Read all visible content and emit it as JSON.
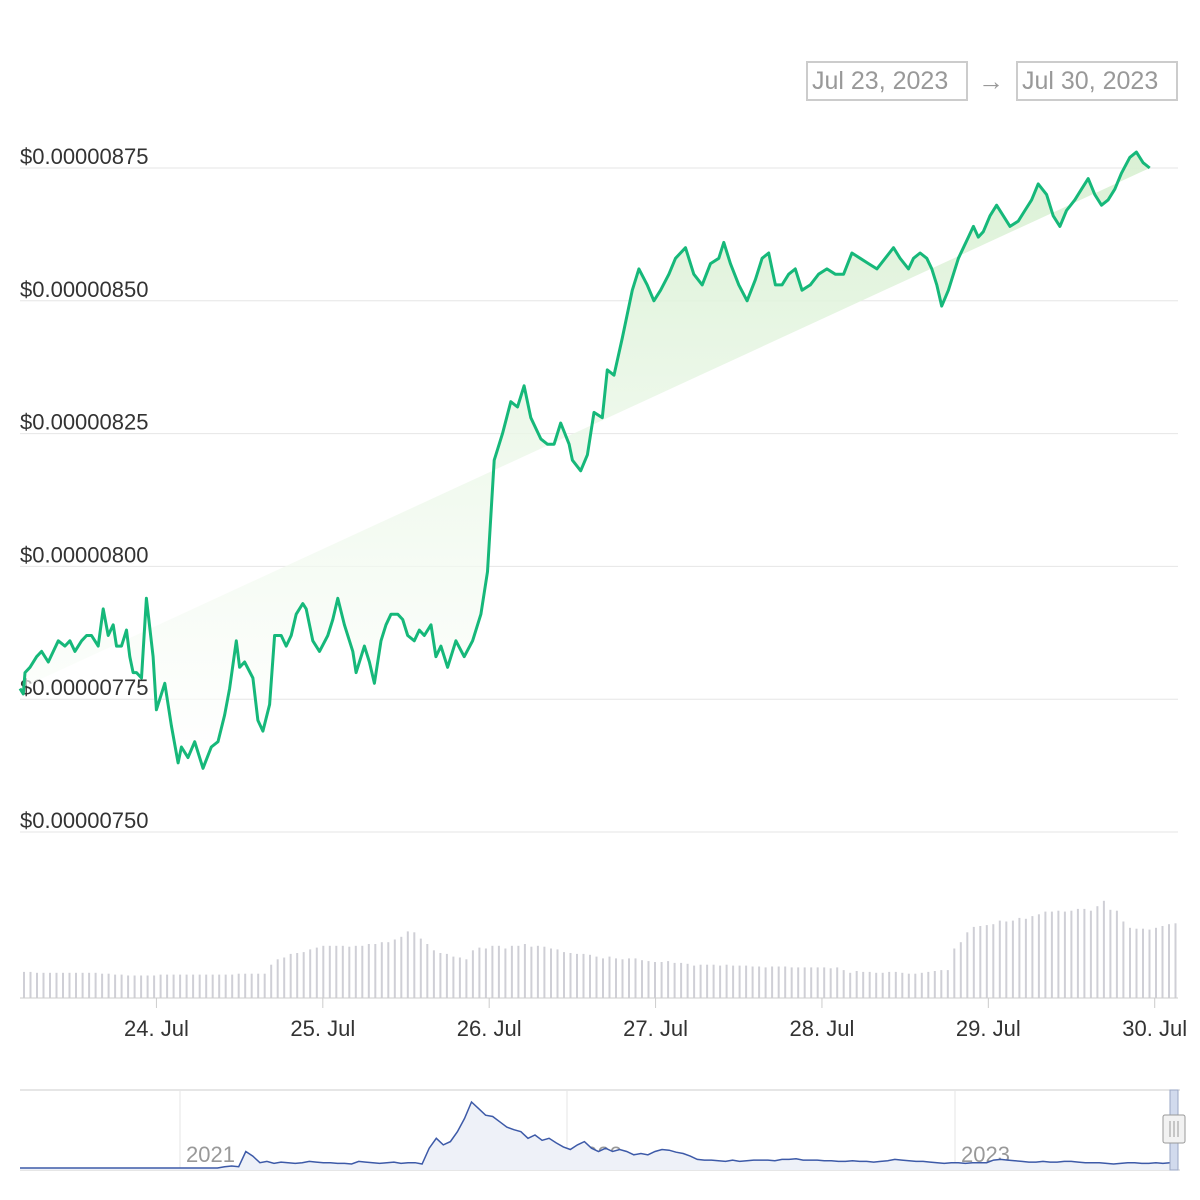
{
  "range_selector": {
    "from": "Jul 23, 2023",
    "arrow": "→",
    "to": "Jul 30, 2023"
  },
  "colors": {
    "line": "#16b87a",
    "fill_top": "#d8f0d2",
    "volume": "#cfcfd6",
    "navigator_line": "#3d5aa8",
    "navigator_fill": "#eef1f8"
  },
  "chart_data": {
    "type": "line",
    "title": "",
    "xlabel": "",
    "ylabel": "",
    "y_ticks": [
      "$0.00000875",
      "$0.00000850",
      "$0.00000825",
      "$0.00000800",
      "$0.00000775",
      "$0.00000750"
    ],
    "ylim": [
      7.5e-06,
      8.75e-06
    ],
    "x_ticks": [
      "24. Jul",
      "25. Jul",
      "26. Jul",
      "27. Jul",
      "28. Jul",
      "29. Jul",
      "30. Jul"
    ],
    "x_range_days": [
      23.18,
      30.14
    ],
    "grid": true,
    "series": [
      {
        "values_x_days": [
          23.18,
          23.2,
          23.21,
          23.24,
          23.28,
          23.31,
          23.35,
          23.38,
          23.41,
          23.45,
          23.48,
          23.51,
          23.55,
          23.58,
          23.61,
          23.65,
          23.68,
          23.71,
          23.74,
          23.76,
          23.79,
          23.82,
          23.84,
          23.86,
          23.88,
          23.91,
          23.94,
          23.98,
          24.0,
          24.05,
          24.09,
          24.13,
          24.15,
          24.19,
          24.23,
          24.28,
          24.33,
          24.37,
          24.41,
          24.44,
          24.48,
          24.5,
          24.53,
          24.58,
          24.61,
          24.64,
          24.68,
          24.71,
          24.75,
          24.78,
          24.81,
          24.84,
          24.88,
          24.9,
          24.94,
          24.98,
          25.03,
          25.06,
          25.09,
          25.13,
          25.18,
          25.2,
          25.25,
          25.28,
          25.31,
          25.35,
          25.38,
          25.41,
          25.45,
          25.48,
          25.51,
          25.55,
          25.58,
          25.61,
          25.65,
          25.68,
          25.71,
          25.75,
          25.8,
          25.85,
          25.9,
          25.95,
          25.99,
          26.03,
          26.08,
          26.13,
          26.17,
          26.21,
          26.25,
          26.31,
          26.35,
          26.39,
          26.43,
          26.48,
          26.5,
          26.55,
          26.59,
          26.63,
          26.68,
          26.71,
          26.75,
          26.8,
          26.86,
          26.9,
          26.95,
          26.99,
          27.03,
          27.08,
          27.12,
          27.18,
          27.23,
          27.28,
          27.33,
          27.38,
          27.41,
          27.45,
          27.5,
          27.55,
          27.6,
          27.64,
          27.68,
          27.72,
          27.76,
          27.8,
          27.84,
          27.88,
          27.93,
          27.98,
          28.03,
          28.08,
          28.13,
          28.18,
          28.23,
          28.28,
          28.33,
          28.38,
          28.43,
          28.47,
          28.52,
          28.55,
          28.59,
          28.63,
          28.66,
          28.69,
          28.72,
          28.76,
          28.79,
          28.82,
          28.85,
          28.88,
          28.91,
          28.94,
          28.97,
          29.01,
          29.05,
          29.09,
          29.13,
          29.18,
          29.22,
          29.26,
          29.3,
          29.35,
          29.39,
          29.43,
          29.47,
          29.52,
          29.56,
          29.6,
          29.64,
          29.68,
          29.72,
          29.76,
          29.8,
          29.85,
          29.89,
          29.93,
          29.97,
          30.01,
          30.06,
          30.1,
          30.14
        ],
        "values": [
          7.77e-06,
          7.76e-06,
          7.8e-06,
          7.81e-06,
          7.83e-06,
          7.84e-06,
          7.82e-06,
          7.84e-06,
          7.86e-06,
          7.85e-06,
          7.86e-06,
          7.84e-06,
          7.86e-06,
          7.87e-06,
          7.87e-06,
          7.85e-06,
          7.92e-06,
          7.87e-06,
          7.89e-06,
          7.85e-06,
          7.85e-06,
          7.88e-06,
          7.83e-06,
          7.8e-06,
          7.8e-06,
          7.79e-06,
          7.94e-06,
          7.83e-06,
          7.73e-06,
          7.78e-06,
          7.7e-06,
          7.63e-06,
          7.66e-06,
          7.64e-06,
          7.67e-06,
          7.62e-06,
          7.66e-06,
          7.67e-06,
          7.72e-06,
          7.77e-06,
          7.86e-06,
          7.81e-06,
          7.82e-06,
          7.79e-06,
          7.71e-06,
          7.69e-06,
          7.74e-06,
          7.87e-06,
          7.87e-06,
          7.85e-06,
          7.87e-06,
          7.91e-06,
          7.93e-06,
          7.92e-06,
          7.86e-06,
          7.84e-06,
          7.87e-06,
          7.9e-06,
          7.94e-06,
          7.89e-06,
          7.84e-06,
          7.8e-06,
          7.85e-06,
          7.82e-06,
          7.78e-06,
          7.86e-06,
          7.89e-06,
          7.91e-06,
          7.91e-06,
          7.9e-06,
          7.87e-06,
          7.86e-06,
          7.88e-06,
          7.87e-06,
          7.89e-06,
          7.83e-06,
          7.85e-06,
          7.81e-06,
          7.86e-06,
          7.83e-06,
          7.86e-06,
          7.91e-06,
          7.99e-06,
          8.2e-06,
          8.25e-06,
          8.31e-06,
          8.3e-06,
          8.34e-06,
          8.28e-06,
          8.24e-06,
          8.23e-06,
          8.23e-06,
          8.27e-06,
          8.23e-06,
          8.2e-06,
          8.18e-06,
          8.21e-06,
          8.29e-06,
          8.28e-06,
          8.37e-06,
          8.36e-06,
          8.43e-06,
          8.52e-06,
          8.56e-06,
          8.53e-06,
          8.5e-06,
          8.52e-06,
          8.55e-06,
          8.58e-06,
          8.6e-06,
          8.55e-06,
          8.53e-06,
          8.57e-06,
          8.58e-06,
          8.61e-06,
          8.57e-06,
          8.53e-06,
          8.5e-06,
          8.54e-06,
          8.58e-06,
          8.59e-06,
          8.53e-06,
          8.53e-06,
          8.55e-06,
          8.56e-06,
          8.52e-06,
          8.53e-06,
          8.55e-06,
          8.56e-06,
          8.55e-06,
          8.55e-06,
          8.59e-06,
          8.58e-06,
          8.57e-06,
          8.56e-06,
          8.58e-06,
          8.6e-06,
          8.58e-06,
          8.56e-06,
          8.58e-06,
          8.59e-06,
          8.58e-06,
          8.56e-06,
          8.53e-06,
          8.49e-06,
          8.52e-06,
          8.55e-06,
          8.58e-06,
          8.6e-06,
          8.62e-06,
          8.64e-06,
          8.62e-06,
          8.63e-06,
          8.66e-06,
          8.68e-06,
          8.66e-06,
          8.64e-06,
          8.65e-06,
          8.67e-06,
          8.69e-06,
          8.72e-06,
          8.7e-06,
          8.66e-06,
          8.64e-06,
          8.67e-06,
          8.69e-06,
          8.71e-06,
          8.73e-06,
          8.7e-06,
          8.68e-06,
          8.69e-06,
          8.71e-06,
          8.74e-06,
          8.77e-06,
          8.78e-06,
          8.76e-06,
          8.75e-06
        ]
      }
    ],
    "volume": [
      0.29,
      0.29,
      0.28,
      0.28,
      0.28,
      0.28,
      0.28,
      0.28,
      0.28,
      0.28,
      0.28,
      0.28,
      0.27,
      0.27,
      0.26,
      0.26,
      0.25,
      0.25,
      0.25,
      0.25,
      0.25,
      0.26,
      0.26,
      0.26,
      0.26,
      0.26,
      0.26,
      0.26,
      0.26,
      0.26,
      0.26,
      0.26,
      0.26,
      0.27,
      0.27,
      0.27,
      0.27,
      0.27,
      0.37,
      0.43,
      0.45,
      0.49,
      0.5,
      0.51,
      0.54,
      0.56,
      0.58,
      0.58,
      0.58,
      0.58,
      0.57,
      0.58,
      0.58,
      0.6,
      0.6,
      0.62,
      0.62,
      0.65,
      0.68,
      0.74,
      0.73,
      0.66,
      0.6,
      0.53,
      0.5,
      0.49,
      0.46,
      0.45,
      0.43,
      0.53,
      0.56,
      0.55,
      0.58,
      0.58,
      0.55,
      0.58,
      0.58,
      0.6,
      0.57,
      0.58,
      0.57,
      0.55,
      0.54,
      0.51,
      0.5,
      0.49,
      0.49,
      0.48,
      0.46,
      0.44,
      0.46,
      0.44,
      0.43,
      0.44,
      0.44,
      0.42,
      0.41,
      0.4,
      0.4,
      0.41,
      0.39,
      0.39,
      0.38,
      0.36,
      0.37,
      0.37,
      0.37,
      0.36,
      0.37,
      0.36,
      0.36,
      0.36,
      0.35,
      0.35,
      0.34,
      0.35,
      0.35,
      0.35,
      0.34,
      0.34,
      0.34,
      0.34,
      0.34,
      0.34,
      0.33,
      0.34,
      0.31,
      0.28,
      0.3,
      0.29,
      0.29,
      0.28,
      0.28,
      0.29,
      0.29,
      0.28,
      0.27,
      0.27,
      0.28,
      0.29,
      0.3,
      0.31,
      0.31,
      0.55,
      0.62,
      0.73,
      0.79,
      0.8,
      0.81,
      0.82,
      0.86,
      0.85,
      0.86,
      0.89,
      0.88,
      0.91,
      0.93,
      0.96,
      0.96,
      0.97,
      0.96,
      0.97,
      0.99,
      0.99,
      0.97,
      1.02,
      1.08,
      0.98,
      0.97,
      0.85,
      0.78,
      0.77,
      0.77,
      0.76,
      0.78,
      0.8,
      0.82,
      0.83
    ],
    "navigator": {
      "x_ticks": [
        "2021",
        "2022",
        "2023"
      ],
      "values": [
        0,
        0,
        0,
        0,
        0,
        0,
        0,
        0,
        0,
        0,
        0,
        0,
        0,
        0,
        0,
        0,
        0,
        0,
        0,
        0,
        0,
        0,
        0,
        0,
        0,
        0,
        0,
        0,
        0,
        0.02,
        0.03,
        0.02,
        0.25,
        0.18,
        0.08,
        0.1,
        0.07,
        0.09,
        0.08,
        0.07,
        0.08,
        0.1,
        0.09,
        0.08,
        0.08,
        0.07,
        0.07,
        0.06,
        0.1,
        0.09,
        0.08,
        0.07,
        0.08,
        0.09,
        0.07,
        0.08,
        0.08,
        0.06,
        0.3,
        0.45,
        0.35,
        0.4,
        0.55,
        0.75,
        1.0,
        0.9,
        0.8,
        0.78,
        0.7,
        0.62,
        0.58,
        0.55,
        0.45,
        0.5,
        0.42,
        0.45,
        0.38,
        0.32,
        0.28,
        0.35,
        0.4,
        0.3,
        0.25,
        0.3,
        0.25,
        0.28,
        0.25,
        0.2,
        0.22,
        0.2,
        0.25,
        0.28,
        0.27,
        0.24,
        0.22,
        0.18,
        0.13,
        0.12,
        0.12,
        0.11,
        0.1,
        0.12,
        0.1,
        0.11,
        0.12,
        0.12,
        0.12,
        0.11,
        0.13,
        0.13,
        0.14,
        0.12,
        0.12,
        0.12,
        0.11,
        0.11,
        0.1,
        0.1,
        0.11,
        0.1,
        0.1,
        0.09,
        0.1,
        0.11,
        0.13,
        0.12,
        0.11,
        0.1,
        0.1,
        0.09,
        0.08,
        0.07,
        0.08,
        0.08,
        0.07,
        0.08,
        0.08,
        0.08,
        0.12,
        0.13,
        0.12,
        0.11,
        0.1,
        0.09,
        0.09,
        0.1,
        0.09,
        0.09,
        0.1,
        0.1,
        0.09,
        0.08,
        0.08,
        0.08,
        0.07,
        0.06,
        0.07,
        0.08,
        0.08,
        0.07,
        0.07,
        0.08,
        0.07,
        0.08
      ]
    }
  }
}
